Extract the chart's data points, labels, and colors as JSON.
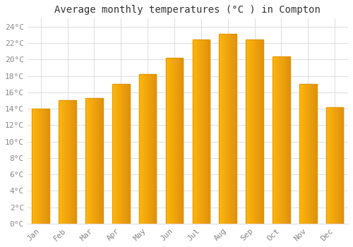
{
  "title": "Average monthly temperatures (°C ) in Compton",
  "months": [
    "Jan",
    "Feb",
    "Mar",
    "Apr",
    "May",
    "Jun",
    "Jul",
    "Aug",
    "Sep",
    "Oct",
    "Nov",
    "Dec"
  ],
  "values": [
    14.0,
    15.0,
    15.3,
    17.0,
    18.2,
    20.2,
    22.4,
    23.1,
    22.4,
    20.4,
    17.0,
    14.2
  ],
  "bar_color_main": "#FFAA00",
  "bar_color_light": "#FFD060",
  "bar_edge_color": "#E09000",
  "background_color": "#FFFFFF",
  "grid_color": "#DDDDDD",
  "ylim": [
    0,
    25
  ],
  "yticks": [
    0,
    2,
    4,
    6,
    8,
    10,
    12,
    14,
    16,
    18,
    20,
    22,
    24
  ],
  "title_fontsize": 10,
  "tick_fontsize": 8,
  "tick_color": "#888888",
  "title_color": "#333333",
  "font_family": "monospace",
  "bar_width": 0.65
}
